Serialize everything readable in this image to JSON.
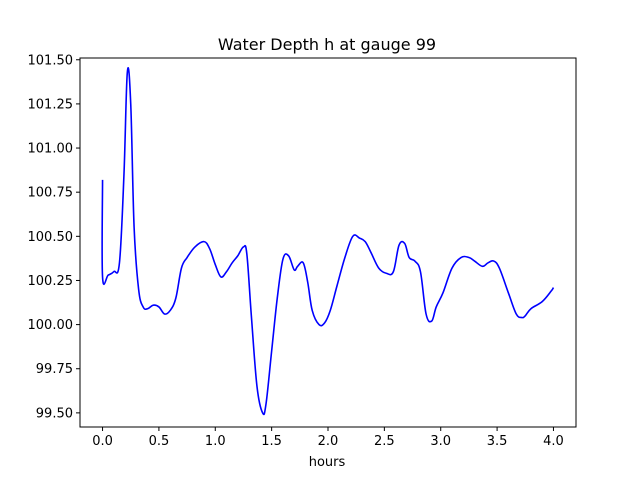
{
  "chart_data": {
    "type": "line",
    "title": "Water Depth h at gauge 99",
    "xlabel": "hours",
    "ylabel": "",
    "xlim": [
      -0.2,
      4.2
    ],
    "ylim": [
      99.42,
      101.51
    ],
    "grid": false,
    "line_color": "#0000ff",
    "x_ticks": [
      0.0,
      0.5,
      1.0,
      1.5,
      2.0,
      2.5,
      3.0,
      3.5,
      4.0
    ],
    "x_tick_labels": [
      "0.0",
      "0.5",
      "1.0",
      "1.5",
      "2.0",
      "2.5",
      "3.0",
      "3.5",
      "4.0"
    ],
    "y_ticks": [
      99.5,
      99.75,
      100.0,
      100.25,
      100.5,
      100.75,
      101.0,
      101.25,
      101.5
    ],
    "y_tick_labels": [
      "99.50",
      "99.75",
      "100.00",
      "100.25",
      "100.50",
      "100.75",
      "101.00",
      "101.25",
      "101.50"
    ],
    "series": [
      {
        "x": [
          0.0,
          0.0,
          0.05,
          0.1,
          0.15,
          0.19,
          0.22,
          0.25,
          0.28,
          0.32,
          0.36,
          0.4,
          0.45,
          0.5,
          0.55,
          0.6,
          0.65,
          0.7,
          0.75,
          0.82,
          0.9,
          0.95,
          1.0,
          1.05,
          1.1,
          1.15,
          1.2,
          1.25,
          1.28,
          1.32,
          1.37,
          1.42,
          1.45,
          1.5,
          1.55,
          1.6,
          1.65,
          1.7,
          1.73,
          1.78,
          1.82,
          1.86,
          1.92,
          1.97,
          2.02,
          2.08,
          2.15,
          2.22,
          2.28,
          2.33,
          2.38,
          2.45,
          2.52,
          2.58,
          2.63,
          2.68,
          2.72,
          2.77,
          2.82,
          2.87,
          2.92,
          2.96,
          3.02,
          3.1,
          3.18,
          3.25,
          3.3,
          3.37,
          3.42,
          3.47,
          3.52,
          3.6,
          3.67,
          3.72,
          3.75,
          3.8,
          3.9,
          3.98,
          4.0
        ],
        "y": [
          100.82,
          100.27,
          100.28,
          100.3,
          100.35,
          100.85,
          101.43,
          101.25,
          100.55,
          100.2,
          100.1,
          100.09,
          100.11,
          100.1,
          100.06,
          100.08,
          100.15,
          100.32,
          100.38,
          100.44,
          100.47,
          100.43,
          100.34,
          100.27,
          100.3,
          100.35,
          100.39,
          100.44,
          100.4,
          100.05,
          99.65,
          99.5,
          99.55,
          99.85,
          100.15,
          100.37,
          100.39,
          100.31,
          100.33,
          100.35,
          100.24,
          100.08,
          100.0,
          100.01,
          100.08,
          100.22,
          100.38,
          100.5,
          100.49,
          100.47,
          100.41,
          100.32,
          100.29,
          100.3,
          100.45,
          100.46,
          100.38,
          100.36,
          100.3,
          100.06,
          100.02,
          100.1,
          100.18,
          100.32,
          100.38,
          100.38,
          100.36,
          100.33,
          100.35,
          100.36,
          100.32,
          100.18,
          100.06,
          100.04,
          100.05,
          100.09,
          100.13,
          100.19,
          100.21
        ]
      }
    ]
  }
}
